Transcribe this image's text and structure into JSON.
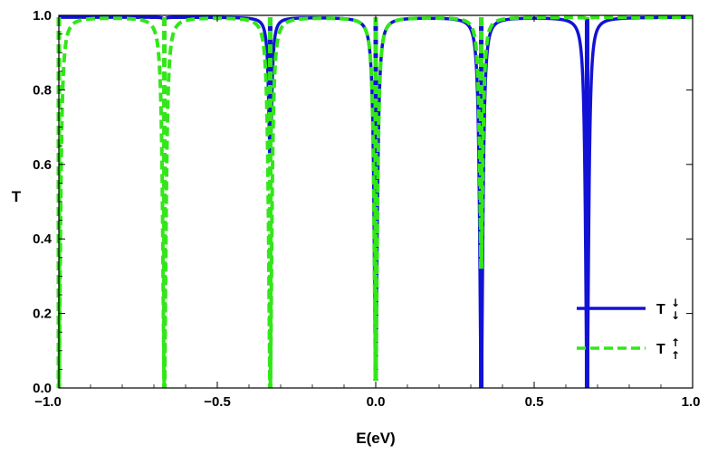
{
  "chart_data": {
    "type": "line",
    "xlabel": "E(eV)",
    "ylabel": "T",
    "xlim": [
      -1.0,
      1.0
    ],
    "ylim": [
      0.0,
      1.0
    ],
    "x_ticks": [
      "-1.0",
      "-0.5",
      "0.0",
      "0.5",
      "1.0"
    ],
    "y_ticks": [
      "0.0",
      "0.2",
      "0.4",
      "0.6",
      "0.8",
      "1.0"
    ],
    "grid": false,
    "legend_position": "bottom-right",
    "series": [
      {
        "name": "T",
        "spin_sup": "↓",
        "spin_sub": "↓",
        "color": "#1212d6",
        "style": "solid",
        "dips": [
          {
            "x": -0.667,
            "min": 0.99
          },
          {
            "x": -0.333,
            "min": 0.62
          },
          {
            "x": 0.0,
            "min": 0.02
          },
          {
            "x": 0.333,
            "min": 0.0
          },
          {
            "x": 0.667,
            "min": 0.0
          }
        ]
      },
      {
        "name": "T",
        "spin_sup": "↑",
        "spin_sub": "↑",
        "color": "#33e61a",
        "style": "dashed",
        "dips": [
          {
            "x": -1.0,
            "min": 0.0
          },
          {
            "x": -0.667,
            "min": 0.0
          },
          {
            "x": -0.333,
            "min": 0.0
          },
          {
            "x": 0.0,
            "min": 0.02
          },
          {
            "x": 0.333,
            "min": 0.32
          },
          {
            "x": 0.667,
            "min": 0.99
          }
        ]
      }
    ]
  }
}
